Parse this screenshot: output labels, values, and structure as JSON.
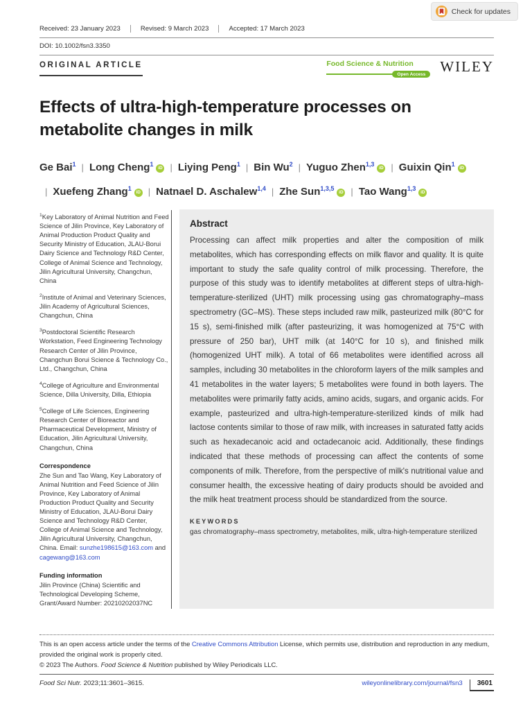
{
  "badge": {
    "label": "Check for updates"
  },
  "header": {
    "received": "Received: 23 January 2023",
    "revised": "Revised: 9 March 2023",
    "accepted": "Accepted: 17 March 2023",
    "doi": "DOI: 10.1002/fsn3.3350",
    "article_type": "ORIGINAL ARTICLE",
    "journal_name": "Food Science & Nutrition",
    "open_access_label": "Open Access",
    "publisher": "WILEY"
  },
  "title": "Effects of ultra-high-temperature processes on metabolite changes in milk",
  "authors": [
    {
      "name": "Ge Bai",
      "sup": "1",
      "orcid": false
    },
    {
      "name": "Long Cheng",
      "sup": "1",
      "orcid": true
    },
    {
      "name": "Liying Peng",
      "sup": "1",
      "orcid": false
    },
    {
      "name": "Bin Wu",
      "sup": "2",
      "orcid": false
    },
    {
      "name": "Yuguo Zhen",
      "sup": "1,3",
      "orcid": true
    },
    {
      "name": "Guixin Qin",
      "sup": "1",
      "orcid": true
    },
    {
      "name": "Xuefeng Zhang",
      "sup": "1",
      "orcid": true
    },
    {
      "name": "Natnael D. Aschalew",
      "sup": "1,4",
      "orcid": false
    },
    {
      "name": "Zhe Sun",
      "sup": "1,3,5",
      "orcid": true
    },
    {
      "name": "Tao Wang",
      "sup": "1,3",
      "orcid": true
    }
  ],
  "affiliations": [
    {
      "sup": "1",
      "text": "Key Laboratory of Animal Nutrition and Feed Science of Jilin Province, Key Laboratory of Animal Production Product Quality and Security Ministry of Education, JLAU-Borui Dairy Science and Technology R&D Center, College of Animal Science and Technology, Jilin Agricultural University, Changchun, China"
    },
    {
      "sup": "2",
      "text": "Institute of Animal and Veterinary Sciences, Jilin Academy of Agricultural Sciences, Changchun, China"
    },
    {
      "sup": "3",
      "text": "Postdoctoral Scientific Research Workstation, Feed Engineering Technology Research Center of Jilin Province, Changchun Borui Science & Technology Co., Ltd., Changchun, China"
    },
    {
      "sup": "4",
      "text": "College of Agriculture and Environmental Science, Dilla University, Dilla, Ethiopia"
    },
    {
      "sup": "5",
      "text": "College of Life Sciences, Engineering Research Center of Bioreactor and Pharmaceutical Development, Ministry of Education, Jilin Agricultural University, Changchun, China"
    }
  ],
  "correspondence": {
    "heading": "Correspondence",
    "body": "Zhe Sun and Tao Wang, Key Laboratory of Animal Nutrition and Feed Science of Jilin Province, Key Laboratory of Animal Production Product Quality and Security Ministry of Education, JLAU-Borui Dairy Science and Technology R&D Center, College of Animal Science and Technology, Jilin Agricultural University, Changchun, China.",
    "email_label": "Email: ",
    "email1": "sunzhe198615@163.com",
    "email_join": " and ",
    "email2": "cagewang@163.com"
  },
  "funding": {
    "heading": "Funding information",
    "text": "Jilin Province (China) Scientific and Technological Developing Scheme, Grant/Award Number: 20210202037NC"
  },
  "abstract": {
    "heading": "Abstract",
    "text": "Processing can affect milk properties and alter the composition of milk metabolites, which has corresponding effects on milk flavor and quality. It is quite important to study the safe quality control of milk processing. Therefore, the purpose of this study was to identify metabolites at different steps of ultra-high-temperature-sterilized (UHT) milk processing using gas chromatography–mass spectrometry (GC–MS). These steps included raw milk, pasteurized milk (80°C for 15 s), semi-finished milk (after pasteurizing, it was homogenized at 75°C with pressure of 250 bar), UHT milk (at 140°C for 10 s), and finished milk (homogenized UHT milk). A total of 66 metabolites were identified across all samples, including 30 metabolites in the chloroform layers of the milk samples and 41 metabolites in the water layers; 5 metabolites were found in both layers. The metabolites were primarily fatty acids, amino acids, sugars, and organic acids. For example, pasteurized and ultra-high-temperature-sterilized kinds of milk had lactose contents similar to those of raw milk, with increases in saturated fatty acids such as hexadecanoic acid and octadecanoic acid. Additionally, these findings indicated that these methods of processing can affect the contents of some components of milk. Therefore, from the perspective of milk's nutritional value and consumer health, the excessive heating of dairy products should be avoided and the milk heat treatment process should be standardized from the source."
  },
  "keywords": {
    "heading": "KEYWORDS",
    "text": "gas chromatography–mass spectrometry, metabolites, milk, ultra-high-temperature sterilized"
  },
  "footnote": {
    "line_pre": "This is an open access article under the terms of the ",
    "link": "Creative Commons Attribution",
    "line_post": " License, which permits use, distribution and reproduction in any medium, provided the original work is properly cited.",
    "copyright_pre": "© 2023 The Authors. ",
    "copyright_italic": "Food Science & Nutrition",
    "copyright_post": " published by Wiley Periodicals LLC."
  },
  "footer": {
    "citation_italic": "Food Sci Nutr.",
    "citation_rest": " 2023;11:3601–3615.",
    "link": "wileyonlinelibrary.com/journal/fsn3",
    "page_number": "3601"
  },
  "colors": {
    "accent_green": "#76B82A",
    "orcid_green": "#A6CE39",
    "link_blue": "#2F4BC7",
    "text_dark": "#1F1F1F",
    "abstract_bg": "#ECECEC"
  }
}
